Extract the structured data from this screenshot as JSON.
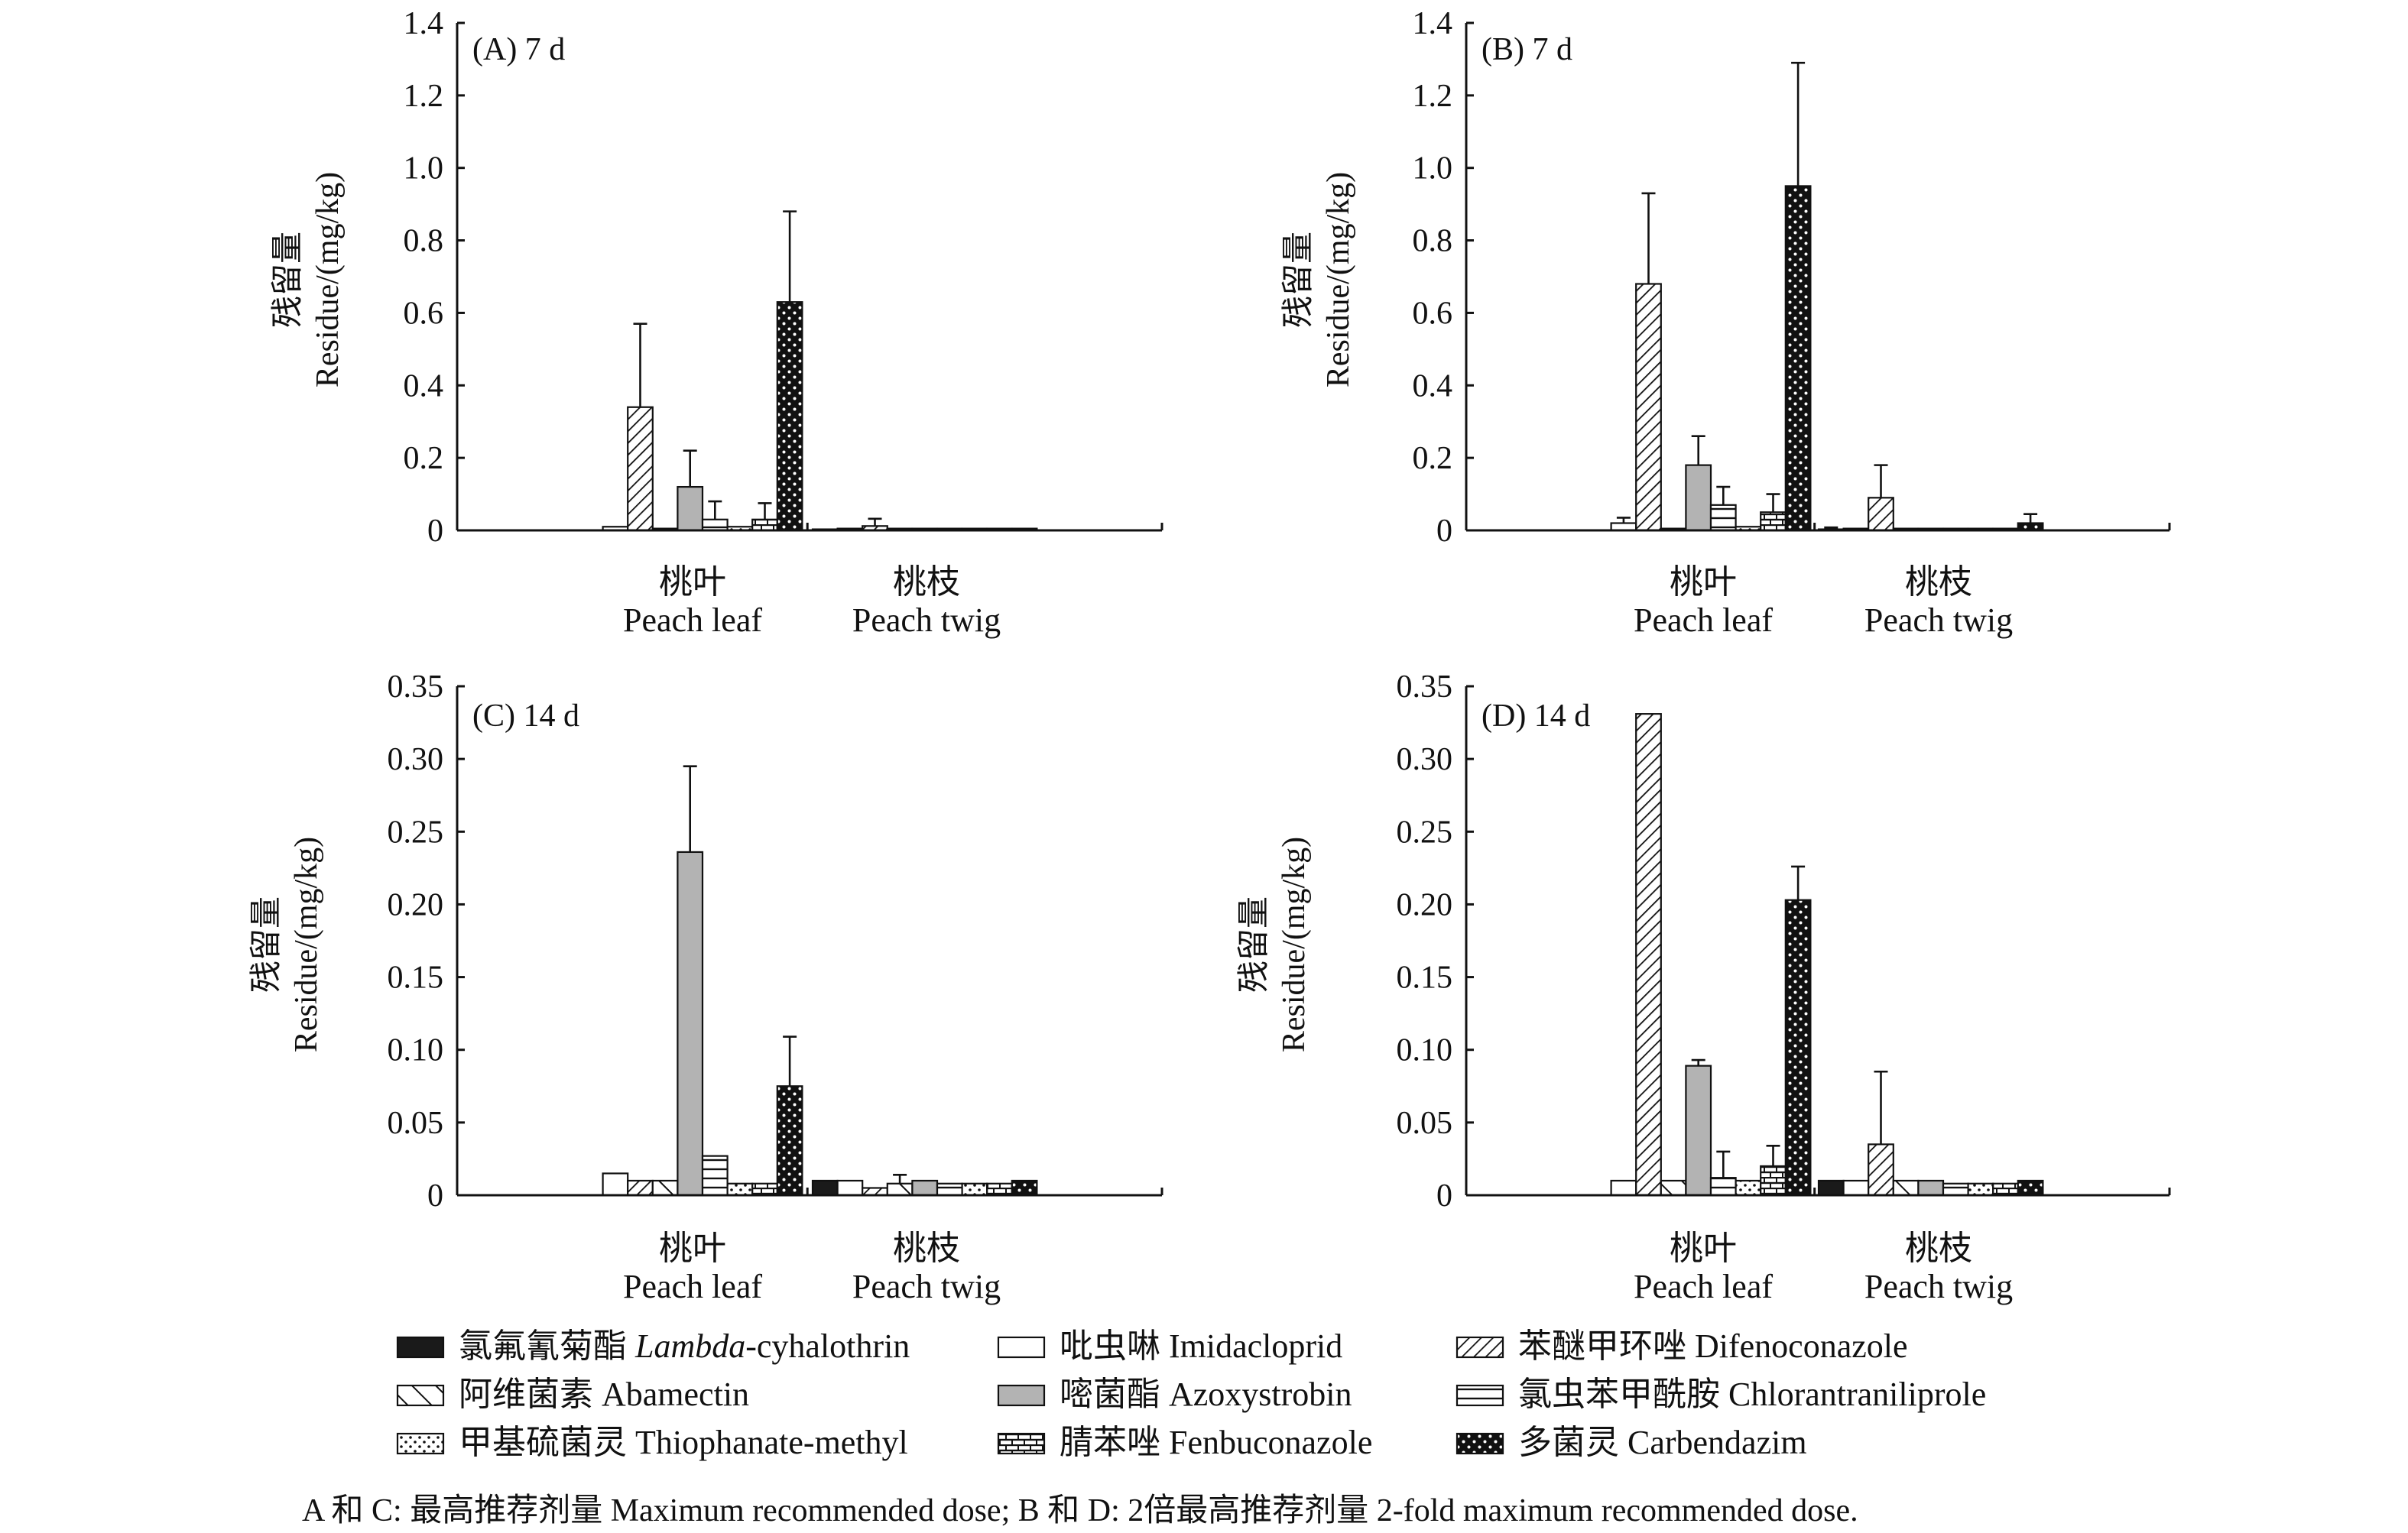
{
  "chart_data": [
    {
      "type": "bar",
      "title": "(A) 7 d",
      "ylabel_cn": "残留量",
      "ylabel": "Residue/(mg/kg)",
      "ylim": [
        0,
        1.4
      ],
      "yticks": [
        "0",
        "0.2",
        "0.4",
        "0.6",
        "0.8",
        "1.0",
        "1.2",
        "1.4"
      ],
      "categories": [
        {
          "cn": "桃叶",
          "en": "Peach leaf"
        },
        {
          "cn": "桃枝",
          "en": "Peach twig"
        }
      ],
      "series": [
        {
          "key": "lambda",
          "values": [
            0,
            0.003
          ],
          "errors": [
            0,
            0
          ]
        },
        {
          "key": "imida",
          "values": [
            0.01,
            0.005
          ],
          "errors": [
            0,
            0
          ]
        },
        {
          "key": "difeno",
          "values": [
            0.34,
            0.012
          ],
          "errors": [
            0.23,
            0.02
          ]
        },
        {
          "key": "abam",
          "values": [
            0.005,
            0.005
          ],
          "errors": [
            0,
            0
          ]
        },
        {
          "key": "azoxy",
          "values": [
            0.12,
            0.005
          ],
          "errors": [
            0.1,
            0
          ]
        },
        {
          "key": "chlor",
          "values": [
            0.03,
            0.005
          ],
          "errors": [
            0.05,
            0
          ]
        },
        {
          "key": "thioph",
          "values": [
            0.01,
            0.005
          ],
          "errors": [
            0,
            0
          ]
        },
        {
          "key": "fenbu",
          "values": [
            0.03,
            0.005
          ],
          "errors": [
            0.045,
            0
          ]
        },
        {
          "key": "carb",
          "values": [
            0.63,
            0.005
          ],
          "errors": [
            0.25,
            0
          ]
        }
      ]
    },
    {
      "type": "bar",
      "title": "(B) 7 d",
      "ylabel_cn": "残留量",
      "ylabel": "Residue/(mg/kg)",
      "ylim": [
        0,
        1.4
      ],
      "yticks": [
        "0",
        "0.2",
        "0.4",
        "0.6",
        "0.8",
        "1.0",
        "1.2",
        "1.4"
      ],
      "categories": [
        {
          "cn": "桃叶",
          "en": "Peach leaf"
        },
        {
          "cn": "桃枝",
          "en": "Peach twig"
        }
      ],
      "series": [
        {
          "key": "lambda",
          "values": [
            0,
            0.003
          ],
          "errors": [
            0,
            0.005
          ]
        },
        {
          "key": "imida",
          "values": [
            0.02,
            0.005
          ],
          "errors": [
            0.015,
            0
          ]
        },
        {
          "key": "difeno",
          "values": [
            0.68,
            0.09
          ],
          "errors": [
            0.25,
            0.09
          ]
        },
        {
          "key": "abam",
          "values": [
            0.005,
            0.005
          ],
          "errors": [
            0,
            0
          ]
        },
        {
          "key": "azoxy",
          "values": [
            0.18,
            0.005
          ],
          "errors": [
            0.08,
            0
          ]
        },
        {
          "key": "chlor",
          "values": [
            0.07,
            0.005
          ],
          "errors": [
            0.05,
            0
          ]
        },
        {
          "key": "thioph",
          "values": [
            0.01,
            0.005
          ],
          "errors": [
            0,
            0
          ]
        },
        {
          "key": "fenbu",
          "values": [
            0.05,
            0.005
          ],
          "errors": [
            0.05,
            0
          ]
        },
        {
          "key": "carb",
          "values": [
            0.95,
            0.02
          ],
          "errors": [
            0.34,
            0.025
          ]
        }
      ]
    },
    {
      "type": "bar",
      "title": "(C) 14 d",
      "ylabel_cn": "残留量",
      "ylabel": "Residue/(mg/kg)",
      "ylim": [
        0,
        0.35
      ],
      "yticks": [
        "0",
        "0.05",
        "0.10",
        "0.15",
        "0.20",
        "0.25",
        "0.30",
        "0.35"
      ],
      "categories": [
        {
          "cn": "桃叶",
          "en": "Peach leaf"
        },
        {
          "cn": "桃枝",
          "en": "Peach twig"
        }
      ],
      "series": [
        {
          "key": "lambda",
          "values": [
            0,
            0.01
          ],
          "errors": [
            0,
            0
          ]
        },
        {
          "key": "imida",
          "values": [
            0.015,
            0.01
          ],
          "errors": [
            0,
            0
          ]
        },
        {
          "key": "difeno",
          "values": [
            0.01,
            0.005
          ],
          "errors": [
            0,
            0
          ]
        },
        {
          "key": "abam",
          "values": [
            0.01,
            0.008
          ],
          "errors": [
            0,
            0.006
          ]
        },
        {
          "key": "azoxy",
          "values": [
            0.236,
            0.01
          ],
          "errors": [
            0.059,
            0
          ]
        },
        {
          "key": "chlor",
          "values": [
            0.027,
            0.008
          ],
          "errors": [
            0,
            0
          ]
        },
        {
          "key": "thioph",
          "values": [
            0.008,
            0.008
          ],
          "errors": [
            0,
            0
          ]
        },
        {
          "key": "fenbu",
          "values": [
            0.008,
            0.008
          ],
          "errors": [
            0,
            0
          ]
        },
        {
          "key": "carb",
          "values": [
            0.075,
            0.01
          ],
          "errors": [
            0.034,
            0
          ]
        }
      ]
    },
    {
      "type": "bar",
      "title": "(D) 14 d",
      "ylabel_cn": "残留量",
      "ylabel": "Residue/(mg/kg)",
      "ylim": [
        0,
        0.35
      ],
      "yticks": [
        "0",
        "0.05",
        "0.10",
        "0.15",
        "0.20",
        "0.25",
        "0.30",
        "0.35"
      ],
      "categories": [
        {
          "cn": "桃叶",
          "en": "Peach leaf"
        },
        {
          "cn": "桃枝",
          "en": "Peach twig"
        }
      ],
      "series": [
        {
          "key": "lambda",
          "values": [
            0,
            0.01
          ],
          "errors": [
            0,
            0
          ]
        },
        {
          "key": "imida",
          "values": [
            0.01,
            0.01
          ],
          "errors": [
            0,
            0
          ]
        },
        {
          "key": "difeno",
          "values": [
            0.331,
            0.035
          ],
          "errors": [
            0,
            0.05
          ]
        },
        {
          "key": "abam",
          "values": [
            0.01,
            0.01
          ],
          "errors": [
            0,
            0
          ]
        },
        {
          "key": "azoxy",
          "values": [
            0.089,
            0.01
          ],
          "errors": [
            0.004,
            0
          ]
        },
        {
          "key": "chlor",
          "values": [
            0.012,
            0.008
          ],
          "errors": [
            0.018,
            0
          ]
        },
        {
          "key": "thioph",
          "values": [
            0.01,
            0.008
          ],
          "errors": [
            0,
            0
          ]
        },
        {
          "key": "fenbu",
          "values": [
            0.02,
            0.008
          ],
          "errors": [
            0.014,
            0
          ]
        },
        {
          "key": "carb",
          "values": [
            0.203,
            0.01
          ],
          "errors": [
            0.023,
            0
          ]
        }
      ]
    }
  ],
  "legend": [
    {
      "key": "lambda",
      "cn": "氯氟氰菊酯",
      "en_italic": "Lambda",
      "en": "-cyhalothrin",
      "fill": "#1a1a1a",
      "pattern": "solid-black"
    },
    {
      "key": "imida",
      "cn": "吡虫啉",
      "en_italic": "",
      "en": "Imidacloprid",
      "fill": "#ffffff",
      "pattern": "solid-white"
    },
    {
      "key": "difeno",
      "cn": "苯醚甲环唑",
      "en_italic": "",
      "en": "Difenoconazole",
      "fill": "#ffffff",
      "pattern": "fine-diagonal"
    },
    {
      "key": "abam",
      "cn": "阿维菌素",
      "en_italic": "",
      "en": "Abamectin",
      "fill": "#ffffff",
      "pattern": "wide-back-diagonal"
    },
    {
      "key": "azoxy",
      "cn": "嘧菌酯",
      "en_italic": "",
      "en": "Azoxystrobin",
      "fill": "#b3b3b3",
      "pattern": "solid-gray"
    },
    {
      "key": "chlor",
      "cn": "氯虫苯甲酰胺",
      "en_italic": "",
      "en": "Chlorantraniliprole",
      "fill": "#ffffff",
      "pattern": "horizontal-lines"
    },
    {
      "key": "thioph",
      "cn": "甲基硫菌灵",
      "en_italic": "",
      "en": "Thiophanate-methyl",
      "fill": "#ffffff",
      "pattern": "dots"
    },
    {
      "key": "fenbu",
      "cn": "腈苯唑",
      "en_italic": "",
      "en": "Fenbuconazole",
      "fill": "#ffffff",
      "pattern": "brick"
    },
    {
      "key": "carb",
      "cn": "多菌灵",
      "en_italic": "",
      "en": "Carbendazim",
      "fill": "#111111",
      "pattern": "black-with-white-dots"
    }
  ],
  "caption": "A 和 C: 最高推荐剂量 Maximum recommended dose; B 和 D: 2倍最高推荐剂量 2-fold maximum recommended dose."
}
